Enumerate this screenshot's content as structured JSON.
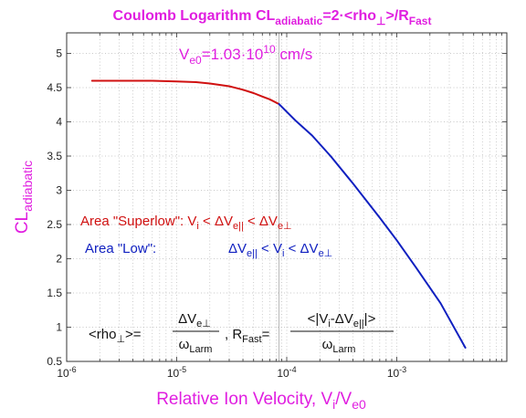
{
  "chart_data": {
    "type": "line",
    "title": {
      "main": "Coulomb Logarithm CL",
      "main_sub": "adiabatic",
      "eq": "=2·<rho",
      "eq_sub": "⊥",
      "rest": ">/R",
      "rest_sub": "Fast"
    },
    "xlabel": {
      "main": "Relative Ion Velocity, V",
      "sub1": "i",
      "mid": "/V",
      "sub2": "e0"
    },
    "ylabel": {
      "main": "CL",
      "sub": "adiabatic"
    },
    "x_scale": "log",
    "xlim": [
      1e-06,
      0.01
    ],
    "ylim": [
      0.5,
      5.3
    ],
    "x_ticks": [
      {
        "base": "10",
        "exp": "-6"
      },
      {
        "base": "10",
        "exp": "-5"
      },
      {
        "base": "10",
        "exp": "-4"
      },
      {
        "base": "10",
        "exp": "-3"
      }
    ],
    "y_ticks": [
      "0.5",
      "1",
      "1.5",
      "2",
      "2.5",
      "3",
      "3.5",
      "4",
      "4.5",
      "5"
    ],
    "grid": true,
    "vertical_line_at": 8.5e-05,
    "series": [
      {
        "color": "#d01010",
        "x": [
          1.7e-06,
          3e-06,
          6e-06,
          1e-05,
          1.5e-05,
          2e-05,
          3e-05,
          4e-05,
          5e-05,
          6e-05,
          7e-05,
          8.5e-05
        ],
        "y": [
          4.6,
          4.6,
          4.6,
          4.59,
          4.58,
          4.56,
          4.52,
          4.47,
          4.42,
          4.37,
          4.33,
          4.26
        ]
      },
      {
        "color": "#1020c0",
        "x": [
          8.5e-05,
          0.00012,
          0.00017,
          0.00025,
          0.0004,
          0.0007,
          0.001,
          0.0015,
          0.0025,
          0.0042
        ],
        "y": [
          4.26,
          4.02,
          3.8,
          3.5,
          3.1,
          2.6,
          2.27,
          1.87,
          1.35,
          0.7
        ]
      }
    ],
    "annotations": {
      "velocity": {
        "pre": "V",
        "sub": "e0",
        "mid": "=1.03·10",
        "sup": "10",
        "post": " cm/s"
      },
      "superlow": {
        "label": "Area \"Superlow\": V",
        "s1": "i",
        "t1": " < ΔV",
        "s2": "e||",
        "t2": " < ΔV",
        "s3": "e⊥"
      },
      "low": {
        "label": "Area \"Low\":",
        "t0": "ΔV",
        "s1": "e||",
        "t1": " < V",
        "s2": "i",
        "t2": " < ΔV",
        "s3": "e⊥"
      },
      "formula": {
        "lhs_a": "<rho",
        "lhs_sub": "⊥",
        "lhs_b": ">=",
        "num1": "ΔV",
        "num1_sub": "e⊥",
        "den1": "ω",
        "den1_sub": "Larm",
        "mid_a": ", R",
        "mid_sub": "Fast",
        "mid_b": "=",
        "num2_a": "<|V",
        "num2_s1": "i",
        "num2_b": "-ΔV",
        "num2_s2": "e||",
        "num2_c": "|>",
        "den2": "ω",
        "den2_sub": "Larm"
      }
    }
  }
}
